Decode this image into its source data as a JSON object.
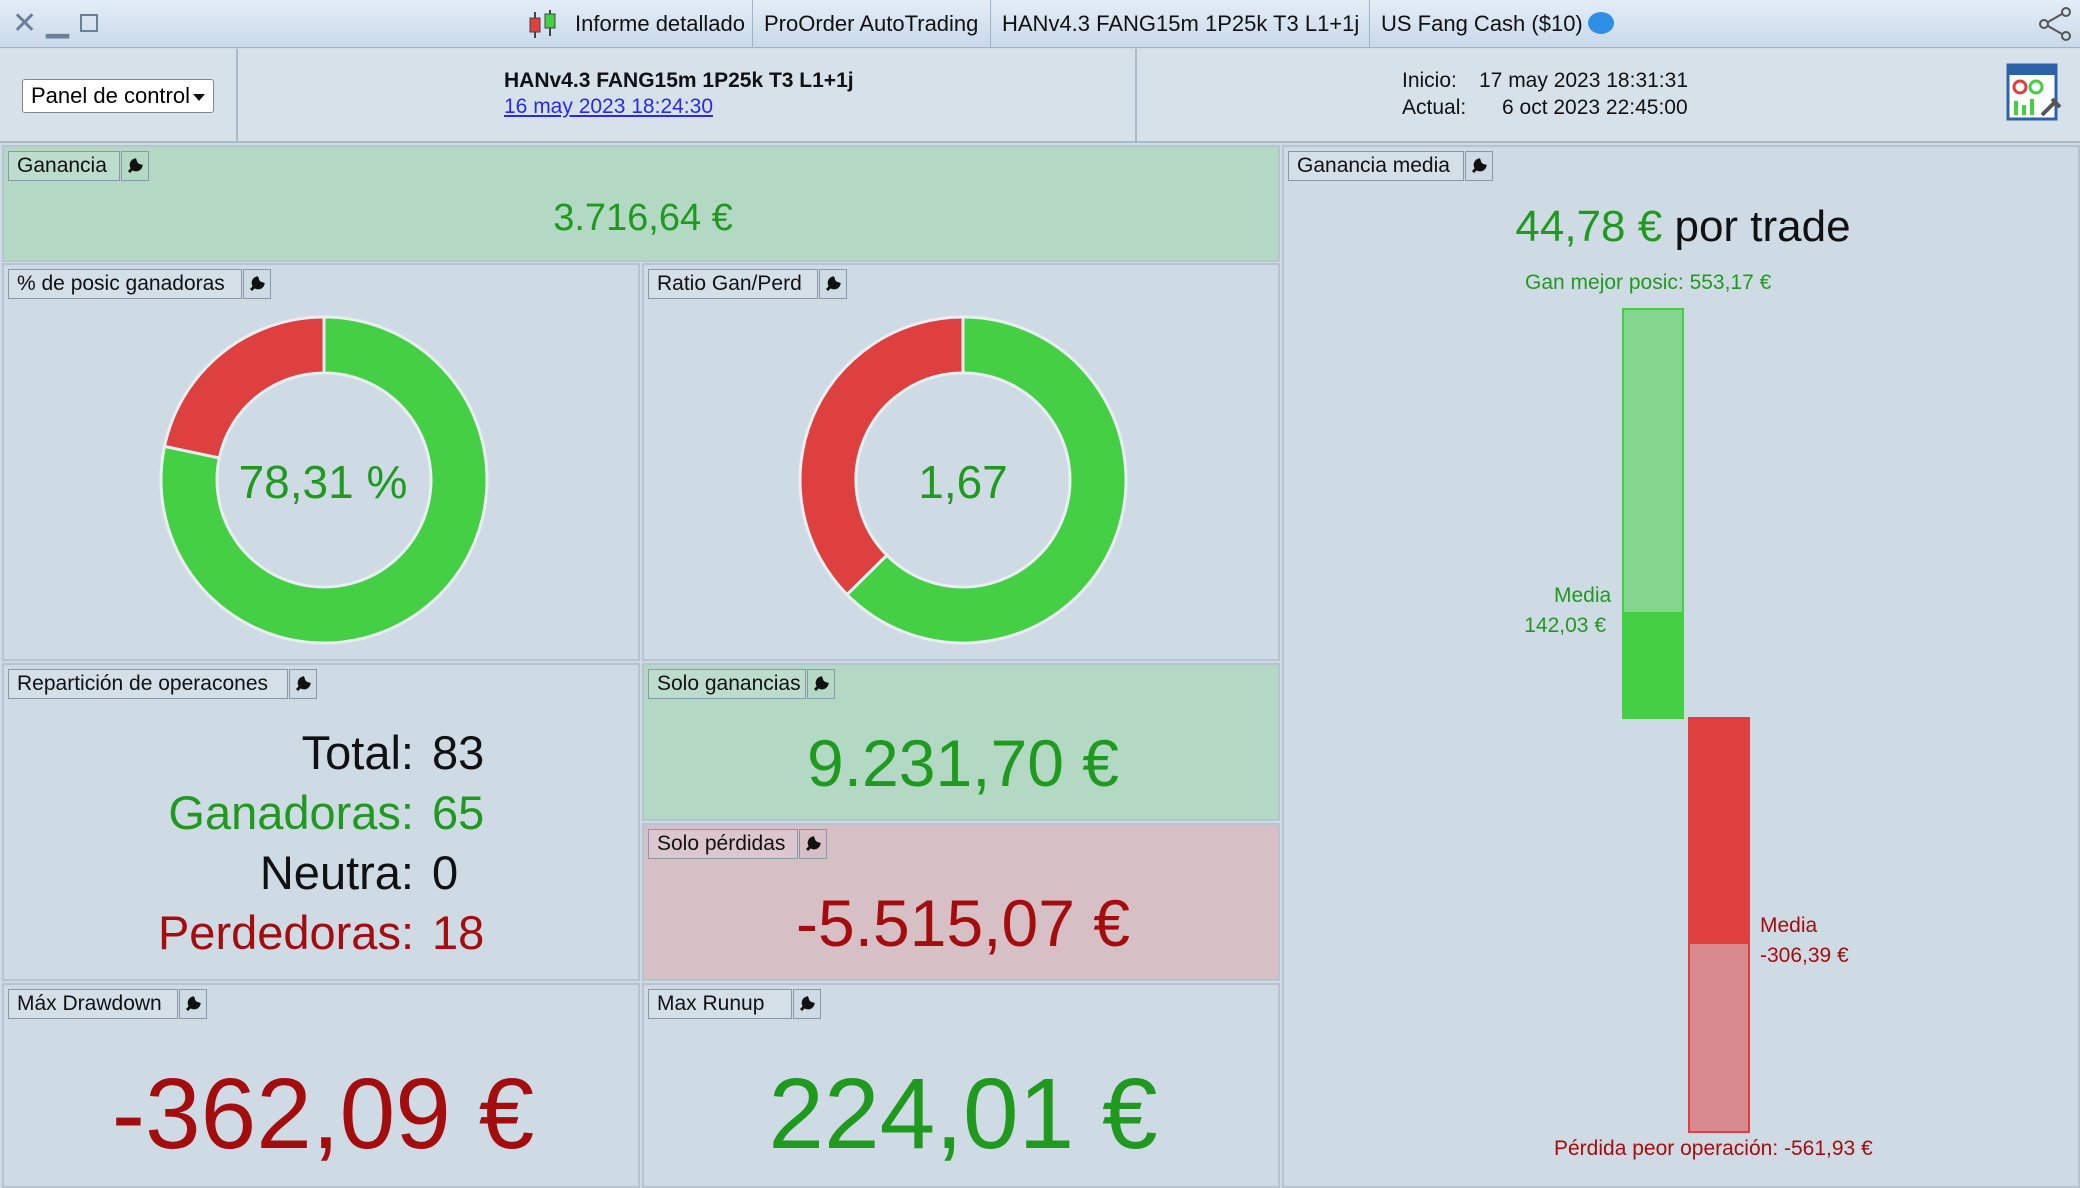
{
  "titlebar": {
    "tabs": [
      "Informe detallado",
      "ProOrder AutoTrading",
      "HANv4.3 FANG15m 1P25k T3 L1+1j",
      "US Fang Cash ($10)"
    ]
  },
  "header": {
    "panel_select": "Panel de control",
    "system_name": "HANv4.3 FANG15m 1P25k T3 L1+1j",
    "system_date": "16 may 2023 18:24:30",
    "inicio_label": "Inicio:",
    "inicio_value": "17 may 2023 18:31:31",
    "actual_label": "Actual:",
    "actual_value": "6 oct 2023 22:45:00"
  },
  "ganancia": {
    "title": "Ganancia",
    "value": "3.716,64 €"
  },
  "win_pct": {
    "title": "% de posic ganadoras",
    "value": "78,31 %",
    "fraction": 0.7831
  },
  "ratio": {
    "title": "Ratio Gan/Perd",
    "value": "1,67",
    "fraction": 0.626
  },
  "reparticion": {
    "title": "Repartición de operacones",
    "total_label": "Total:",
    "total": "83",
    "ganadoras_label": "Ganadoras:",
    "ganadoras": "65",
    "neutra_label": "Neutra:",
    "neutra": "0",
    "perdedoras_label": "Perdedoras:",
    "perdedoras": "18"
  },
  "solo_ganancias": {
    "title": "Solo ganancias",
    "value": "9.231,70 €"
  },
  "solo_perdidas": {
    "title": "Solo pérdidas",
    "value": "-5.515,07 €"
  },
  "max_drawdown": {
    "title": "Máx Drawdown",
    "value": "-362,09 €"
  },
  "max_runup": {
    "title": "Max Runup",
    "value": "224,01 €"
  },
  "ganancia_media": {
    "title": "Ganancia media",
    "value": "44,78 €",
    "per_trade": "por trade",
    "best_label": "Gan mejor posic: 553,17 €",
    "media_gain_label": "Media",
    "media_gain_value": "142,03 €",
    "media_loss_label": "Media",
    "media_loss_value": "-306,39 €",
    "worst_label": "Pérdida peor operación: -561,93 €"
  },
  "colors": {
    "green": "#44cf44",
    "red": "#de3f3f",
    "text_green": "#1f9a1f",
    "text_red": "#a30d0d"
  }
}
